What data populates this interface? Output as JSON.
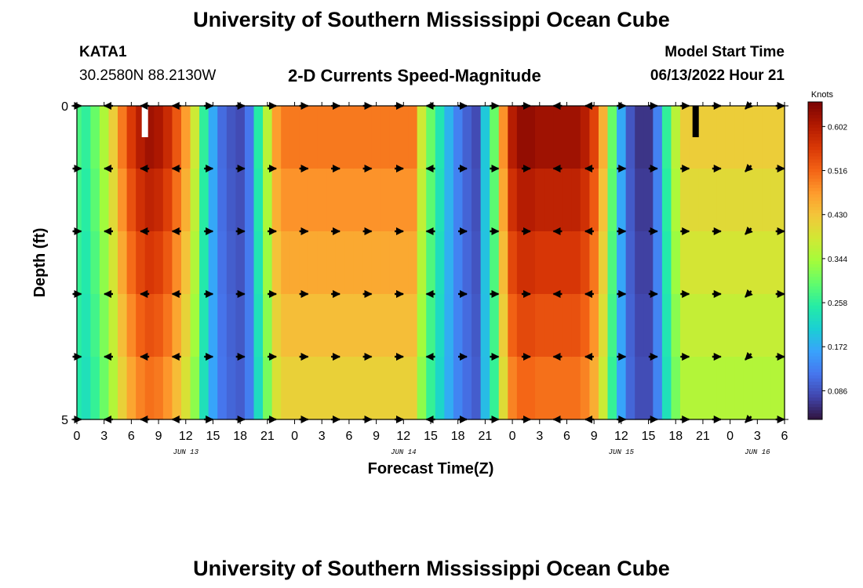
{
  "header": {
    "title": "University of Southern Mississippi Ocean Cube",
    "station": "KATA1",
    "coords": "30.2580N  88.2130W",
    "subtitle": "2-D Currents Speed-Magnitude",
    "model_start_label": "Model Start Time",
    "model_start_value": "06/13/2022 Hour 21"
  },
  "footer": {
    "title": "University of Southern Mississippi Ocean Cube"
  },
  "chart_data": {
    "type": "heatmap",
    "title": "2-D Currents Speed-Magnitude",
    "xlabel": "Forecast Time(Z)",
    "ylabel": "Depth (ft)",
    "x_ticks": [
      "0",
      "3",
      "6",
      "9",
      "12",
      "15",
      "18",
      "21",
      "0",
      "3",
      "6",
      "9",
      "12",
      "15",
      "18",
      "21",
      "0",
      "3",
      "6",
      "9",
      "12",
      "15",
      "18",
      "21",
      "0",
      "3",
      "6"
    ],
    "date_labels": [
      {
        "label": "JUN 13",
        "tick_index": 4
      },
      {
        "label": "JUN 14",
        "tick_index": 12
      },
      {
        "label": "JUN 15",
        "tick_index": 20
      },
      {
        "label": "JUN 16",
        "tick_index": 25
      }
    ],
    "xlim_hours": [
      0,
      78
    ],
    "ylim_ft": [
      0,
      5
    ],
    "y_ticks": [
      "0",
      "5"
    ],
    "colorbar": {
      "label": "Knots",
      "ticks": [
        "0.602",
        "0.516",
        "0.430",
        "0.344",
        "0.258",
        "0.172",
        "0.086"
      ],
      "tick_values": [
        0.602,
        0.516,
        0.43,
        0.344,
        0.258,
        0.172,
        0.086
      ],
      "range": [
        0.03,
        0.65
      ],
      "colors": [
        "#30123b",
        "#4145ab",
        "#4675ed",
        "#39a2fc",
        "#1bcfd4",
        "#24eca6",
        "#61fc6c",
        "#a4fc3b",
        "#d1e834",
        "#f3c63a",
        "#fe9b2d",
        "#f36315",
        "#d93806",
        "#b11901",
        "#7a0403"
      ]
    },
    "speed_by_hour": [
      0.28,
      0.26,
      0.3,
      0.35,
      0.42,
      0.5,
      0.56,
      0.6,
      0.62,
      0.61,
      0.58,
      0.53,
      0.47,
      0.38,
      0.26,
      0.17,
      0.11,
      0.09,
      0.08,
      0.12,
      0.25,
      0.36,
      0.47,
      0.5,
      0.5,
      0.5,
      0.5,
      0.5,
      0.5,
      0.5,
      0.5,
      0.5,
      0.5,
      0.5,
      0.5,
      0.5,
      0.5,
      0.5,
      0.38,
      0.3,
      0.24,
      0.18,
      0.13,
      0.1,
      0.08,
      0.2,
      0.3,
      0.48,
      0.6,
      0.63,
      0.63,
      0.62,
      0.62,
      0.62,
      0.62,
      0.62,
      0.6,
      0.55,
      0.45,
      0.3,
      0.17,
      0.09,
      0.06,
      0.06,
      0.13,
      0.26,
      0.36,
      0.42,
      0.42,
      0.42,
      0.42,
      0.42,
      0.42,
      0.42,
      0.42,
      0.42,
      0.42,
      0.42,
      0.42
    ],
    "depth_modifier": [
      0.0,
      -0.03,
      -0.06,
      -0.09,
      -0.12
    ],
    "arrow_depths_ft": [
      0,
      1,
      2,
      3,
      4,
      5
    ],
    "arrow_hours": [
      0,
      3.5,
      7.5,
      11,
      14.5,
      18,
      21.5,
      25,
      28.5,
      32,
      35.5,
      39,
      42.5,
      46,
      49.5,
      53,
      56.5,
      60,
      63.5,
      67,
      70.5,
      74,
      77.5
    ],
    "arrow_directions_deg": [
      0,
      180,
      180,
      180,
      0,
      0,
      0,
      0,
      0,
      0,
      0,
      180,
      0,
      0,
      0,
      180,
      180,
      0,
      0,
      0,
      0,
      225,
      0
    ],
    "missing_cells": [
      {
        "hour": 7.5,
        "depth_ft": 0.25,
        "color": "#ffffff"
      },
      {
        "hour": 68.2,
        "depth_ft": 0.25,
        "color": "#000000"
      }
    ]
  }
}
